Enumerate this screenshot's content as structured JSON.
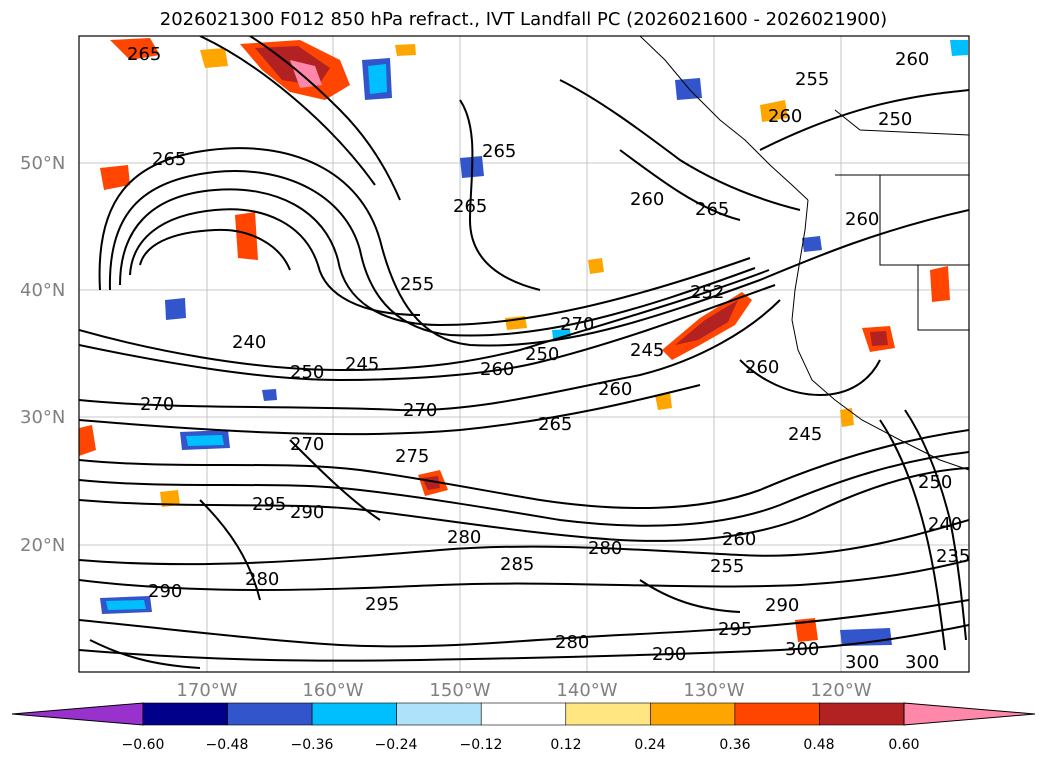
{
  "title": "2026021300 F012 850 hPa refract., IVT Landfall PC (2026021600 - 2026021900)",
  "lat_labels": [
    "50°N",
    "40°N",
    "30°N",
    "20°N"
  ],
  "lon_labels": [
    "170°W",
    "160°W",
    "150°W",
    "140°W",
    "130°W",
    "120°W"
  ],
  "colorbar": {
    "ticks": [
      "−0.60",
      "−0.48",
      "−0.36",
      "−0.24",
      "−0.12",
      "0.12",
      "0.24",
      "0.36",
      "0.48",
      "0.60"
    ],
    "colors": [
      "#9932cc",
      "#00008b",
      "#3355cc",
      "#00bfff",
      "#aee2fa",
      "#ffffff",
      "#ffe680",
      "#ffa500",
      "#ff4500",
      "#b22222",
      "#ff88aa"
    ]
  },
  "contour_labels": [
    "265",
    "265",
    "265",
    "265",
    "260",
    "255",
    "265",
    "260",
    "252",
    "260",
    "250",
    "245",
    "240",
    "250",
    "270",
    "270",
    "260",
    "250",
    "260",
    "270",
    "245",
    "255",
    "275",
    "270",
    "265",
    "245",
    "250",
    "260",
    "295",
    "290",
    "280",
    "280",
    "280",
    "295",
    "290",
    "290",
    "295",
    "280",
    "290",
    "300",
    "300",
    "300",
    "240",
    "235",
    "285",
    "260",
    "255",
    "260"
  ]
}
